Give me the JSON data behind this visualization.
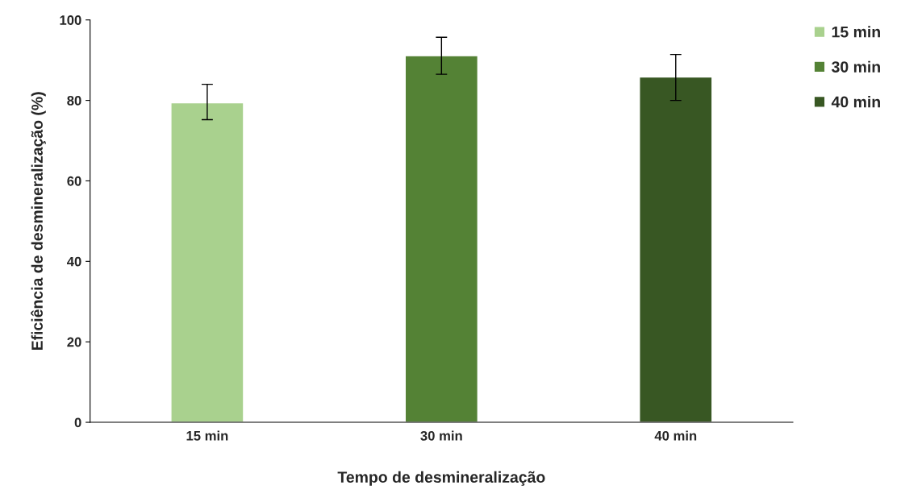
{
  "chart_data": {
    "type": "bar",
    "xlabel": "Tempo de desmineralização",
    "ylabel": "Eficiência de desmineralização (%)",
    "categories": [
      "15 min",
      "30 min",
      "40 min"
    ],
    "series": [
      {
        "name": "15 min",
        "color": "#a9d18e",
        "values": [
          79.4,
          null,
          null
        ],
        "errors": [
          [
            75.2,
            84.0
          ],
          null,
          null
        ]
      },
      {
        "name": "30 min",
        "color": "#548235",
        "values": [
          null,
          91.1,
          null
        ],
        "errors": [
          null,
          [
            86.5,
            95.7
          ],
          null
        ]
      },
      {
        "name": "40 min",
        "color": "#385723",
        "values": [
          null,
          null,
          85.8
        ],
        "errors": [
          null,
          null,
          [
            80.0,
            91.4
          ]
        ]
      }
    ],
    "ylim": [
      0,
      100
    ],
    "yticks": [
      0,
      20,
      40,
      60,
      80,
      100
    ],
    "grid": false,
    "legend": "top right"
  }
}
